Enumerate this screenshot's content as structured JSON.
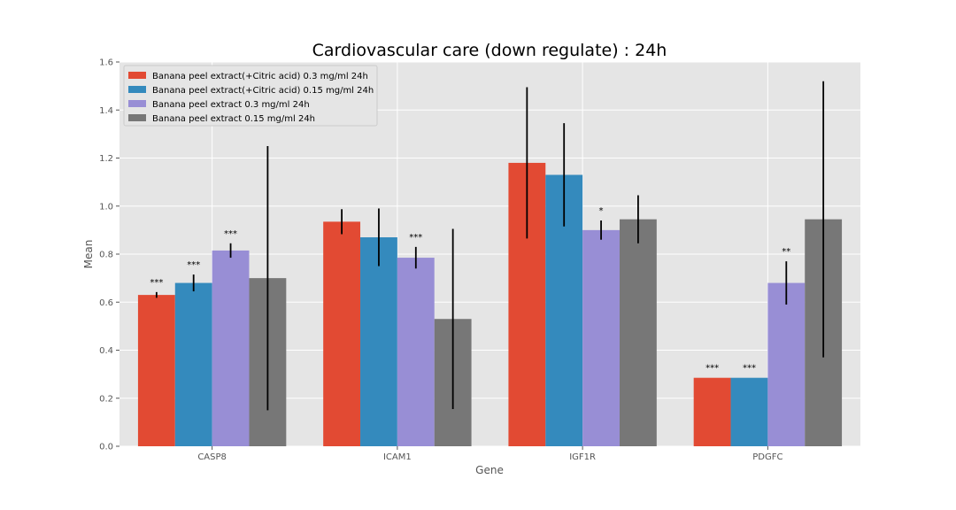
{
  "chart_data": {
    "type": "bar",
    "title": "Cardiovascular care (down regulate) : 24h",
    "xlabel": "Gene",
    "ylabel": "Mean",
    "ylim": [
      0,
      1.6
    ],
    "yticks": [
      "0.0",
      "0.2",
      "0.4",
      "0.6",
      "0.8",
      "1.0",
      "1.2",
      "1.4",
      "1.6"
    ],
    "grid": true,
    "legend_position": "top-left",
    "categories": [
      "CASP8",
      "ICAM1",
      "IGF1R",
      "PDGFC"
    ],
    "series": [
      {
        "name": "Banana peel extract(+Citric acid) 0.3 mg/ml 24h",
        "color": "#e24a33",
        "values": [
          0.63,
          0.935,
          1.18,
          0.285
        ],
        "errors": [
          0.012,
          0.052,
          0.315,
          0.0
        ],
        "significance": [
          "***",
          "",
          "",
          "***"
        ]
      },
      {
        "name": "Banana peel extract(+Citric acid) 0.15 mg/ml 24h",
        "color": "#348abd",
        "values": [
          0.68,
          0.87,
          1.13,
          0.285
        ],
        "errors": [
          0.035,
          0.12,
          0.215,
          0.0
        ],
        "significance": [
          "***",
          "",
          "",
          "***"
        ]
      },
      {
        "name": "Banana peel extract 0.3 mg/ml 24h",
        "color": "#988ed5",
        "values": [
          0.815,
          0.785,
          0.9,
          0.68
        ],
        "errors": [
          0.03,
          0.045,
          0.04,
          0.09
        ],
        "significance": [
          "***",
          "***",
          "*",
          "**"
        ]
      },
      {
        "name": "Banana peel extract 0.15 mg/ml 24h",
        "color": "#777777",
        "values": [
          0.7,
          0.53,
          0.945,
          0.945
        ],
        "errors": [
          0.55,
          0.375,
          0.1,
          0.575
        ],
        "significance": [
          "",
          "",
          "",
          ""
        ]
      }
    ]
  }
}
